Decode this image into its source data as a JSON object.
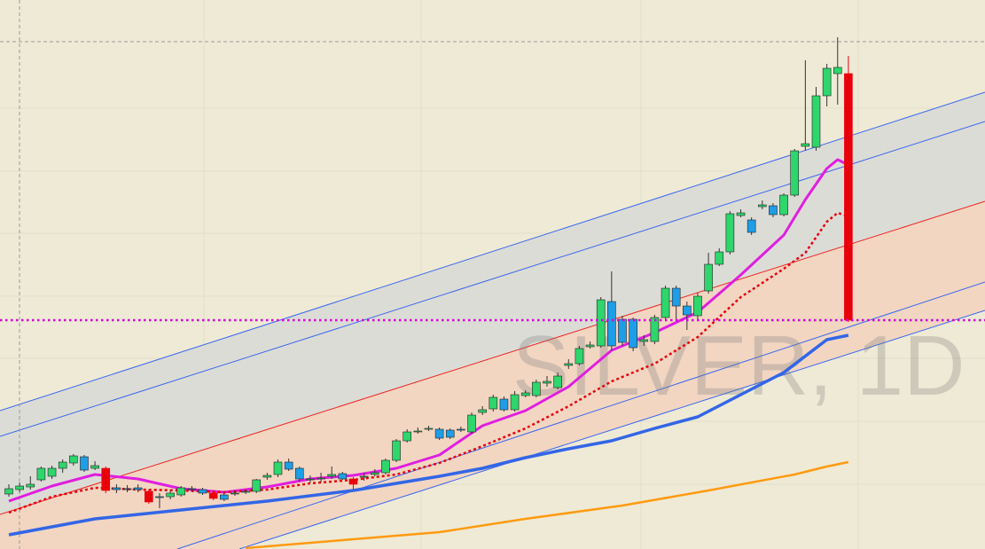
{
  "chart_data": {
    "type": "candlestick",
    "watermark": "SILVER, 1D",
    "ylim": [
      0,
      619
    ],
    "open": [
      62,
      67,
      70,
      78,
      82,
      91,
      97,
      104,
      91,
      91,
      69,
      68,
      69,
      65,
      59,
      59,
      61,
      68,
      67,
      63,
      61,
      63,
      64,
      65,
      81,
      84,
      98,
      91,
      78,
      79,
      82,
      85,
      79,
      81,
      84,
      86,
      100,
      122,
      132,
      135,
      135,
      134,
      135,
      132,
      154,
      158,
      169,
      157,
      173,
      173,
      187,
      182,
      207,
      209,
      228,
      229,
      279,
      259,
      259,
      234,
      234,
      261,
      294,
      274,
      263,
      291,
      321,
      335,
      376,
      371,
      386,
      387,
      377,
      399,
      454,
      453,
      511,
      536,
      536
    ],
    "high": [
      73,
      75,
      82,
      93,
      94,
      101,
      107,
      106,
      99,
      93,
      73,
      72,
      73,
      67,
      63,
      66,
      71,
      71,
      69,
      65,
      63,
      66,
      67,
      79,
      86,
      101,
      102,
      93,
      83,
      86,
      93,
      87,
      81,
      86,
      90,
      102,
      124,
      135,
      137,
      139,
      137,
      136,
      138,
      154,
      161,
      174,
      172,
      178,
      179,
      191,
      195,
      199,
      214,
      229,
      234,
      284,
      313,
      263,
      261,
      241,
      264,
      297,
      297,
      279,
      289,
      334,
      339,
      381,
      383,
      374,
      393,
      390,
      401,
      451,
      551,
      521,
      547,
      577,
      556
    ],
    "low": [
      59,
      64,
      67,
      76,
      79,
      86,
      94,
      87,
      89,
      63,
      63,
      64,
      64,
      51,
      46,
      56,
      59,
      65,
      61,
      55,
      54,
      60,
      62,
      63,
      78,
      81,
      88,
      76,
      75,
      75,
      79,
      78,
      67,
      77,
      82,
      84,
      98,
      120,
      130,
      133,
      123,
      124,
      132,
      130,
      151,
      155,
      155,
      155,
      171,
      171,
      183,
      180,
      203,
      207,
      226,
      227,
      224,
      229,
      223,
      229,
      231,
      259,
      259,
      247,
      259,
      288,
      319,
      332,
      374,
      354,
      383,
      374,
      375,
      397,
      449,
      449,
      499,
      501,
      256
    ],
    "close": [
      68,
      71,
      73,
      91,
      91,
      98,
      105,
      89,
      94,
      66,
      67,
      67,
      67,
      53,
      58,
      63,
      69,
      67,
      63,
      57,
      56,
      63,
      65,
      78,
      83,
      98,
      90,
      79,
      79,
      80,
      84,
      79,
      73,
      82,
      86,
      100,
      122,
      132,
      133,
      136,
      125,
      126,
      134,
      151,
      157,
      171,
      157,
      174,
      176,
      188,
      189,
      195,
      209,
      226,
      230,
      281,
      229,
      233,
      227,
      236,
      261,
      294,
      274,
      264,
      285,
      321,
      335,
      378,
      379,
      357,
      388,
      377,
      399,
      449,
      457,
      511,
      542,
      543,
      258
    ],
    "colors": [
      "#2ed66c",
      "#2ed66c",
      "#2ed66c",
      "#2ed66c",
      "#2ed66c",
      "#2ed66c",
      "#2ed66c",
      "#1e9ee6",
      "#2ed66c",
      "#e8000b",
      "#1e9ee6",
      "#1e9ee6",
      "#1e9ee6",
      "#e8000b",
      "#1e9ee6",
      "#2ed66c",
      "#2ed66c",
      "#1e9ee6",
      "#1e9ee6",
      "#e8000b",
      "#1e9ee6",
      "#2ed66c",
      "#2ed66c",
      "#2ed66c",
      "#2ed66c",
      "#2ed66c",
      "#1e9ee6",
      "#1e9ee6",
      "#2ed66c",
      "#2ed66c",
      "#2ed66c",
      "#1e9ee6",
      "#e8000b",
      "#2ed66c",
      "#2ed66c",
      "#2ed66c",
      "#2ed66c",
      "#2ed66c",
      "#2ed66c",
      "#2ed66c",
      "#1e9ee6",
      "#1e9ee6",
      "#1e9ee6",
      "#2ed66c",
      "#2ed66c",
      "#2ed66c",
      "#1e9ee6",
      "#2ed66c",
      "#2ed66c",
      "#2ed66c",
      "#2ed66c",
      "#2ed66c",
      "#2ed66c",
      "#2ed66c",
      "#2ed66c",
      "#2ed66c",
      "#1e9ee6",
      "#1e9ee6",
      "#1e9ee6",
      "#2ed66c",
      "#2ed66c",
      "#2ed66c",
      "#1e9ee6",
      "#1e9ee6",
      "#2ed66c",
      "#2ed66c",
      "#2ed66c",
      "#2ed66c",
      "#2ed66c",
      "#1e9ee6",
      "#2ed66c",
      "#1e9ee6",
      "#2ed66c",
      "#2ed66c",
      "#2ed66c",
      "#2ed66c",
      "#2ed66c",
      "#2ed66c",
      "#e8000b"
    ],
    "lines": [
      {
        "color": "#e01ee0",
        "x": [
          0,
          4,
          8,
          12,
          16,
          20,
          24,
          28,
          32,
          36,
          40,
          44,
          48,
          52,
          56,
          60,
          64,
          68,
          72,
          74,
          76,
          77,
          78
        ],
        "values": [
          54,
          71,
          84,
          79,
          68,
          64,
          70,
          79,
          83,
          91,
          106,
          139,
          156,
          183,
          224,
          244,
          267,
          309,
          354,
          394,
          429,
          439,
          433
        ]
      },
      {
        "color": "#e8000b",
        "dotted": true,
        "x": [
          0,
          4,
          8,
          12,
          16,
          20,
          24,
          28,
          32,
          36,
          40,
          44,
          48,
          52,
          56,
          60,
          64,
          68,
          72,
          74,
          76,
          77,
          78
        ],
        "values": [
          41,
          59,
          69,
          67,
          66,
          64,
          67,
          74,
          78,
          84,
          97,
          116,
          136,
          161,
          189,
          209,
          239,
          284,
          316,
          334,
          369,
          379,
          375
        ]
      },
      {
        "color": "#3366e6",
        "x": [
          0,
          8,
          16,
          24,
          32,
          36,
          40,
          44,
          48,
          52,
          56,
          60,
          64,
          68,
          72,
          76,
          78
        ],
        "values": [
          16,
          34,
          44,
          54,
          66,
          74,
          82,
          91,
          103,
          113,
          122,
          136,
          149,
          174,
          199,
          236,
          241
        ]
      },
      {
        "color": "#ff9a10",
        "x": [
          22,
          32,
          40,
          48,
          57,
          65,
          73,
          76,
          78
        ],
        "values": [
          1,
          11,
          19,
          34,
          49,
          66,
          84,
          93,
          98
        ]
      }
    ],
    "hline": {
      "value": 258,
      "color": "#d400d4"
    }
  }
}
